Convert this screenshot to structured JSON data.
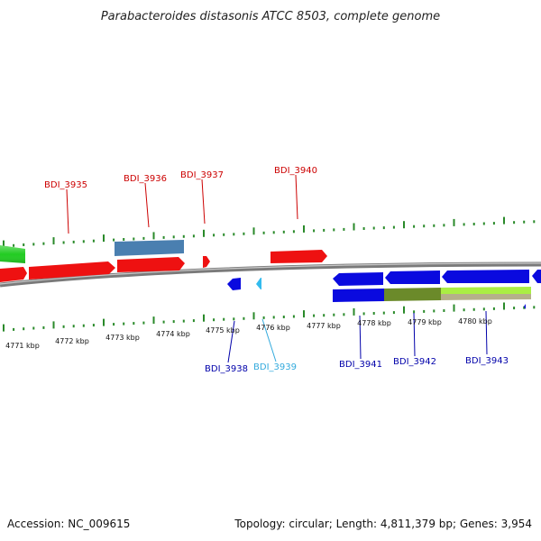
{
  "title": "Parabacteroides distasonis ATCC 8503, complete genome",
  "footer": {
    "accession": "Accession: NC_009615",
    "topology": "Topology: circular; Length: 4,811,379 bp; Genes: 3,954"
  },
  "kbp_labels": [
    "4771 kbp",
    "4772 kbp",
    "4773 kbp",
    "4774 kbp",
    "4775 kbp",
    "4776 kbp",
    "4777 kbp",
    "4778 kbp",
    "4779 kbp",
    "4780 kbp"
  ],
  "gene_labels": {
    "top": [
      "BDI_3935",
      "BDI_3936",
      "BDI_3937",
      "BDI_3940"
    ],
    "bottom": [
      "BDI_3938",
      "BDI_3939",
      "BDI_3941",
      "BDI_3942",
      "BDI_3943"
    ]
  },
  "colors": {
    "red": "#ee1111",
    "blue": "#0a0adf",
    "steel": "#4a7fb0",
    "green": "#22cc22",
    "olive": "#6b8a2a",
    "lime": "#aaee44",
    "khaki": "#b5b08a",
    "cyan": "#33bbee",
    "tick": "#2a8a2a",
    "label_red": "#cc0000",
    "label_blue": "#0000aa",
    "label_cyan": "#33aadd"
  }
}
